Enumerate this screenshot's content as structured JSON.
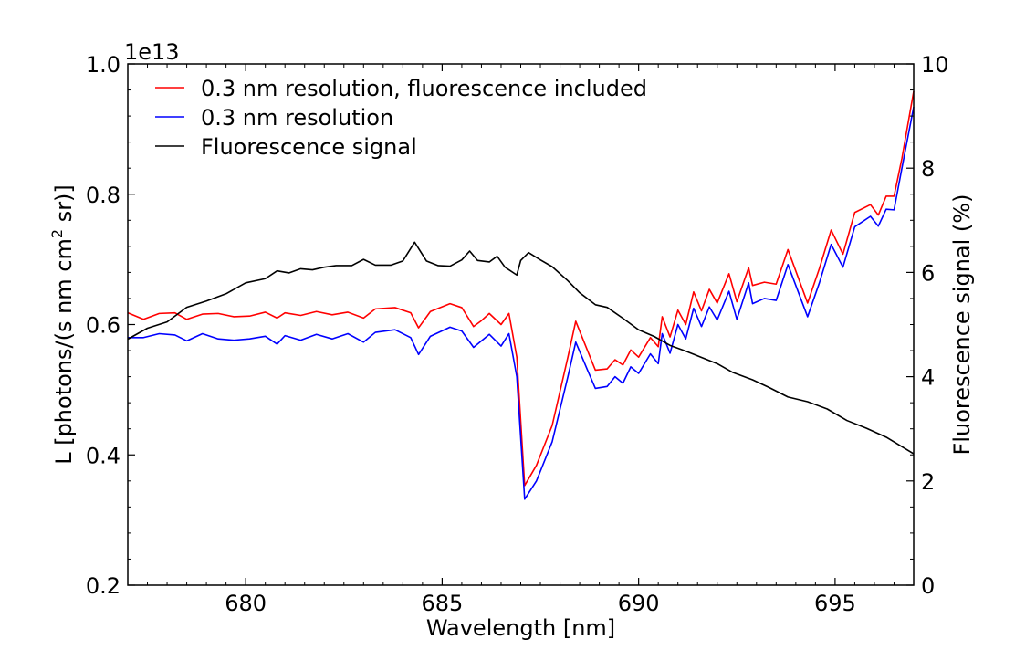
{
  "chart_data": {
    "type": "line",
    "xlabel": "Wavelength [nm]",
    "ylabel": "L [photons/(s nm cm² sr)]",
    "ylabel_right": "Fluorescence signal (%)",
    "y_offset_label": "1e13",
    "xlim": [
      677,
      697
    ],
    "ylim": [
      0.2,
      1.0
    ],
    "ylim_right": [
      0,
      10
    ],
    "x_ticks": [
      680,
      685,
      690,
      695
    ],
    "x_tick_labels": [
      "680",
      "685",
      "690",
      "695"
    ],
    "y_ticks": [
      0.2,
      0.4,
      0.6,
      0.8,
      1.0
    ],
    "y_tick_labels": [
      "0.2",
      "0.4",
      "0.6",
      "0.8",
      "1.0"
    ],
    "y_ticks_right": [
      0,
      2,
      4,
      6,
      8,
      10
    ],
    "y_tick_labels_right": [
      "0",
      "2",
      "4",
      "6",
      "8",
      "10"
    ],
    "grid": false,
    "legend_position": "top-left",
    "series": [
      {
        "name": "0.3 nm resolution, fluorescence included",
        "color": "#ff0000",
        "axis": "left",
        "points": [
          [
            677.0,
            0.618
          ],
          [
            677.4,
            0.608
          ],
          [
            677.8,
            0.617
          ],
          [
            678.2,
            0.618
          ],
          [
            678.5,
            0.608
          ],
          [
            678.9,
            0.616
          ],
          [
            679.3,
            0.617
          ],
          [
            679.7,
            0.612
          ],
          [
            680.1,
            0.613
          ],
          [
            680.5,
            0.619
          ],
          [
            680.8,
            0.61
          ],
          [
            681.0,
            0.618
          ],
          [
            681.4,
            0.614
          ],
          [
            681.8,
            0.62
          ],
          [
            682.2,
            0.615
          ],
          [
            682.6,
            0.619
          ],
          [
            683.0,
            0.61
          ],
          [
            683.3,
            0.624
          ],
          [
            683.8,
            0.626
          ],
          [
            684.2,
            0.618
          ],
          [
            684.4,
            0.595
          ],
          [
            684.7,
            0.62
          ],
          [
            685.2,
            0.632
          ],
          [
            685.5,
            0.626
          ],
          [
            685.8,
            0.597
          ],
          [
            686.0,
            0.606
          ],
          [
            686.2,
            0.617
          ],
          [
            686.5,
            0.6
          ],
          [
            686.7,
            0.617
          ],
          [
            686.9,
            0.55
          ],
          [
            687.1,
            0.353
          ],
          [
            687.4,
            0.384
          ],
          [
            687.8,
            0.445
          ],
          [
            688.2,
            0.55
          ],
          [
            688.4,
            0.605
          ],
          [
            688.7,
            0.56
          ],
          [
            688.9,
            0.53
          ],
          [
            689.2,
            0.532
          ],
          [
            689.4,
            0.546
          ],
          [
            689.6,
            0.538
          ],
          [
            689.8,
            0.561
          ],
          [
            690.0,
            0.55
          ],
          [
            690.3,
            0.58
          ],
          [
            690.5,
            0.566
          ],
          [
            690.6,
            0.612
          ],
          [
            690.8,
            0.581
          ],
          [
            691.0,
            0.622
          ],
          [
            691.2,
            0.6
          ],
          [
            691.4,
            0.65
          ],
          [
            691.6,
            0.621
          ],
          [
            691.8,
            0.654
          ],
          [
            692.0,
            0.633
          ],
          [
            692.3,
            0.678
          ],
          [
            692.5,
            0.635
          ],
          [
            692.8,
            0.687
          ],
          [
            692.9,
            0.66
          ],
          [
            693.2,
            0.665
          ],
          [
            693.5,
            0.662
          ],
          [
            693.8,
            0.715
          ],
          [
            694.3,
            0.633
          ],
          [
            694.6,
            0.686
          ],
          [
            694.9,
            0.745
          ],
          [
            695.2,
            0.708
          ],
          [
            695.5,
            0.772
          ],
          [
            695.9,
            0.784
          ],
          [
            696.1,
            0.768
          ],
          [
            696.3,
            0.797
          ],
          [
            696.5,
            0.797
          ],
          [
            696.7,
            0.855
          ],
          [
            697.0,
            0.958
          ]
        ]
      },
      {
        "name": "0.3 nm resolution",
        "color": "#0000ff",
        "axis": "left",
        "points": [
          [
            677.0,
            0.58
          ],
          [
            677.4,
            0.58
          ],
          [
            677.8,
            0.586
          ],
          [
            678.2,
            0.584
          ],
          [
            678.5,
            0.575
          ],
          [
            678.9,
            0.586
          ],
          [
            679.3,
            0.578
          ],
          [
            679.7,
            0.576
          ],
          [
            680.1,
            0.578
          ],
          [
            680.5,
            0.582
          ],
          [
            680.8,
            0.57
          ],
          [
            681.0,
            0.583
          ],
          [
            681.4,
            0.576
          ],
          [
            681.8,
            0.585
          ],
          [
            682.2,
            0.578
          ],
          [
            682.6,
            0.586
          ],
          [
            683.0,
            0.573
          ],
          [
            683.3,
            0.588
          ],
          [
            683.8,
            0.592
          ],
          [
            684.2,
            0.58
          ],
          [
            684.4,
            0.554
          ],
          [
            684.7,
            0.582
          ],
          [
            685.2,
            0.596
          ],
          [
            685.5,
            0.59
          ],
          [
            685.8,
            0.565
          ],
          [
            686.0,
            0.575
          ],
          [
            686.2,
            0.585
          ],
          [
            686.5,
            0.567
          ],
          [
            686.7,
            0.586
          ],
          [
            686.9,
            0.52
          ],
          [
            687.1,
            0.332
          ],
          [
            687.4,
            0.36
          ],
          [
            687.8,
            0.42
          ],
          [
            688.2,
            0.52
          ],
          [
            688.4,
            0.573
          ],
          [
            688.7,
            0.53
          ],
          [
            688.9,
            0.502
          ],
          [
            689.2,
            0.505
          ],
          [
            689.4,
            0.52
          ],
          [
            689.6,
            0.51
          ],
          [
            689.8,
            0.535
          ],
          [
            690.0,
            0.525
          ],
          [
            690.3,
            0.555
          ],
          [
            690.5,
            0.54
          ],
          [
            690.6,
            0.586
          ],
          [
            690.8,
            0.556
          ],
          [
            691.0,
            0.6
          ],
          [
            691.2,
            0.578
          ],
          [
            691.4,
            0.625
          ],
          [
            691.6,
            0.597
          ],
          [
            691.8,
            0.627
          ],
          [
            692.0,
            0.607
          ],
          [
            692.3,
            0.651
          ],
          [
            692.5,
            0.608
          ],
          [
            692.8,
            0.664
          ],
          [
            692.9,
            0.632
          ],
          [
            693.2,
            0.64
          ],
          [
            693.5,
            0.637
          ],
          [
            693.8,
            0.692
          ],
          [
            694.3,
            0.612
          ],
          [
            694.6,
            0.664
          ],
          [
            694.9,
            0.723
          ],
          [
            695.2,
            0.688
          ],
          [
            695.5,
            0.75
          ],
          [
            695.9,
            0.766
          ],
          [
            696.1,
            0.751
          ],
          [
            696.3,
            0.777
          ],
          [
            696.5,
            0.776
          ],
          [
            696.7,
            0.84
          ],
          [
            697.0,
            0.934
          ]
        ]
      },
      {
        "name": "Fluorescence signal",
        "color": "#000000",
        "axis": "right",
        "points": [
          [
            677.0,
            4.72
          ],
          [
            677.5,
            4.93
          ],
          [
            678.0,
            5.05
          ],
          [
            678.5,
            5.33
          ],
          [
            679.0,
            5.45
          ],
          [
            679.5,
            5.59
          ],
          [
            680.0,
            5.8
          ],
          [
            680.5,
            5.88
          ],
          [
            680.8,
            6.03
          ],
          [
            681.1,
            5.99
          ],
          [
            681.4,
            6.07
          ],
          [
            681.7,
            6.05
          ],
          [
            682.0,
            6.1
          ],
          [
            682.3,
            6.13
          ],
          [
            682.7,
            6.13
          ],
          [
            683.0,
            6.25
          ],
          [
            683.3,
            6.14
          ],
          [
            683.7,
            6.14
          ],
          [
            684.0,
            6.22
          ],
          [
            684.3,
            6.58
          ],
          [
            684.6,
            6.22
          ],
          [
            684.9,
            6.13
          ],
          [
            685.2,
            6.12
          ],
          [
            685.5,
            6.24
          ],
          [
            685.7,
            6.41
          ],
          [
            685.9,
            6.23
          ],
          [
            686.2,
            6.2
          ],
          [
            686.4,
            6.31
          ],
          [
            686.6,
            6.1
          ],
          [
            686.9,
            5.95
          ],
          [
            687.0,
            6.23
          ],
          [
            687.2,
            6.38
          ],
          [
            687.5,
            6.24
          ],
          [
            687.8,
            6.11
          ],
          [
            688.2,
            5.84
          ],
          [
            688.5,
            5.61
          ],
          [
            688.9,
            5.38
          ],
          [
            689.2,
            5.33
          ],
          [
            689.6,
            5.12
          ],
          [
            690.0,
            4.9
          ],
          [
            690.4,
            4.77
          ],
          [
            690.8,
            4.6
          ],
          [
            691.2,
            4.49
          ],
          [
            691.6,
            4.37
          ],
          [
            692.0,
            4.25
          ],
          [
            692.4,
            4.08
          ],
          [
            692.9,
            3.94
          ],
          [
            693.3,
            3.8
          ],
          [
            693.8,
            3.61
          ],
          [
            694.3,
            3.52
          ],
          [
            694.8,
            3.38
          ],
          [
            695.3,
            3.16
          ],
          [
            695.8,
            3.01
          ],
          [
            696.3,
            2.84
          ],
          [
            697.0,
            2.52
          ]
        ]
      }
    ]
  }
}
